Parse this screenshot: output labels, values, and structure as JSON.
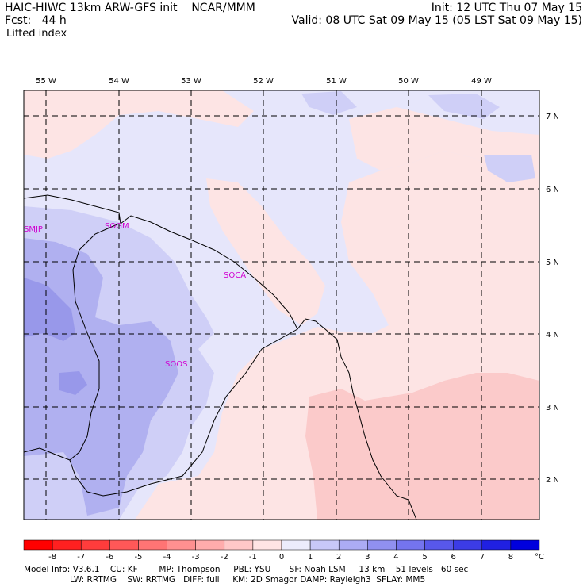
{
  "header": {
    "model_name": "HAIC-HIWC 13km ARW-GFS init",
    "org": "NCAR/MMM",
    "fcst_label": "Fcst:",
    "fcst_value": "44 h",
    "field": "Lifted index",
    "init": "Init: 12 UTC Thu 07 May 15",
    "valid": "Valid: 08 UTC Sat 09 May 15 (05 LST Sat 09 May 15)"
  },
  "map": {
    "lon_labels": [
      "55 W",
      "54 W",
      "53 W",
      "52 W",
      "51 W",
      "50 W",
      "49 W"
    ],
    "lat_labels": [
      "7 N",
      "6 N",
      "5 N",
      "4 N",
      "3 N",
      "2 N"
    ],
    "stations": [
      "SMJP",
      "SOGM",
      "SOCA",
      "SOOS"
    ],
    "colors": {
      "neg_light": "#fde4e4",
      "neg_med": "#fbcaca",
      "pos_light": "#e6e6fb",
      "pos_med": "#cfcff7",
      "pos_strong": "#b0b0f0",
      "pos_deep": "#9898ea",
      "station": "#d000d0"
    }
  },
  "colorbar": {
    "labels": [
      "-8",
      "-7",
      "-6",
      "-5",
      "-4",
      "-3",
      "-2",
      "-1",
      "0",
      "1",
      "2",
      "3",
      "4",
      "5",
      "6",
      "7",
      "8"
    ],
    "unit": "°C",
    "colors": [
      "#ff0000",
      "#ff2020",
      "#ff3c3c",
      "#ff5858",
      "#ff7474",
      "#ff9090",
      "#ffacac",
      "#ffc8c8",
      "#ffe4e4",
      "#ececfc",
      "#c8c8f8",
      "#acacf4",
      "#9090f0",
      "#7474ee",
      "#5858ea",
      "#3c3ce6",
      "#2020e2",
      "#0000dd"
    ]
  },
  "footer": {
    "line1": "Model Info: V3.6.1    CU: KF        MP: Thompson     PBL: YSU       SF: Noah LSM     13 km    51 levels   60 sec",
    "line2": "LW: RRTMG    SW: RRTMG   DIFF: full     KM: 2D Smagor DAMP: Rayleigh3  SFLAY: MM5"
  }
}
